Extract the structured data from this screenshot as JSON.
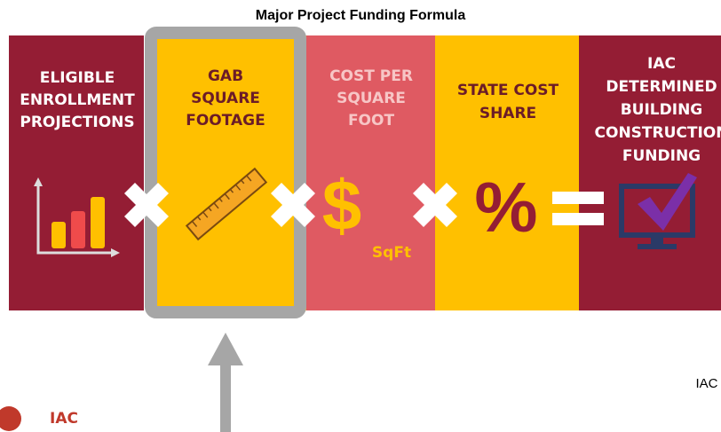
{
  "title": "Major Project Funding Formula",
  "panels": [
    {
      "lines": [
        "ELIGIBLE",
        "ENROLLMENT",
        "PROJECTIONS"
      ]
    },
    {
      "lines": [
        "GAB",
        "SQUARE",
        "FOOTAGE"
      ]
    },
    {
      "lines": [
        "COST PER",
        "SQUARE",
        "FOOT"
      ]
    },
    {
      "lines": [
        "STATE COST",
        "SHARE"
      ]
    },
    {
      "lines": [
        "IAC",
        "DETERMINED",
        "BUILDING",
        "CONSTRUCTION",
        "FUNDING"
      ]
    }
  ],
  "unit_label": "SqFt",
  "footer_text": "IAC",
  "logo_text": "IAC"
}
